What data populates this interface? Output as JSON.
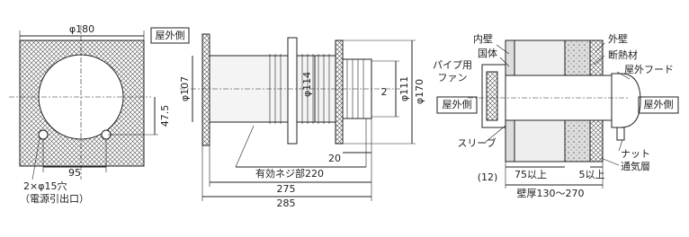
{
  "front_view": {
    "diameter": "φ180",
    "hole_offset": "47.5",
    "hole_pitch": "95",
    "holes": "2×φ15穴",
    "holes_note": "（電源引出口）"
  },
  "side_view": {
    "outdoor_label": "屋外側",
    "pipe_diameter": "φ107",
    "thread_diameter": "φ114",
    "inner_diameter": "φ111",
    "flange_diameter": "φ170",
    "gap": "2",
    "end_length": "20",
    "thread_length": "有効ネジ部220",
    "body_length": "275",
    "total_length": "285"
  },
  "install_view": {
    "inner_wall": "内壁",
    "body": "国体",
    "fan_line1": "パイプ用",
    "fan_line2": "ファン",
    "outdoor_left": "屋外側",
    "sleeve": "スリーブ",
    "offset": "(12)",
    "min_depth": "75以上",
    "min_gap": "5以上",
    "wall_thickness": "壁厚130～270",
    "outer_wall": "外壁",
    "insulation": "断熱材",
    "hood": "屋外フード",
    "outdoor_right": "屋外側",
    "nut": "ナット",
    "air_layer": "通気層"
  }
}
